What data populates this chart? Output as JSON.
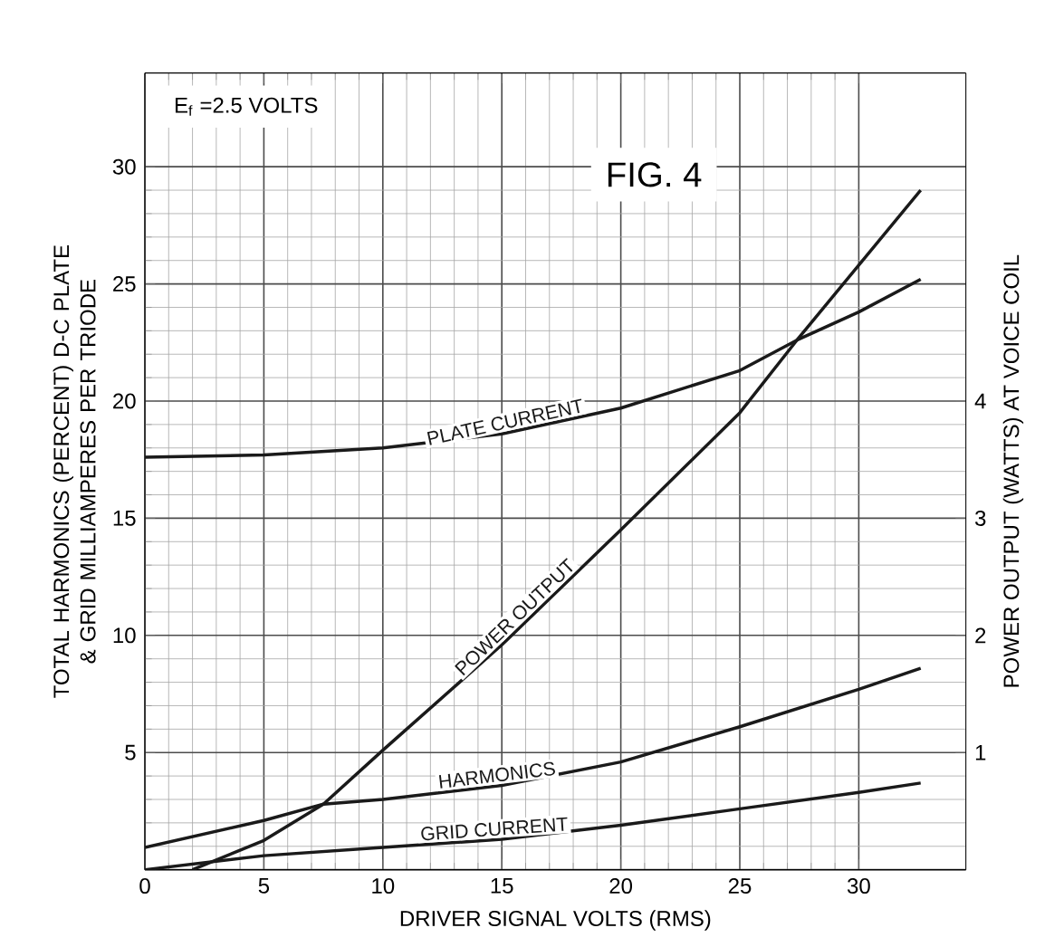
{
  "chart_data": {
    "type": "line",
    "title": "FIG. 4",
    "xlabel": "DRIVER SIGNAL VOLTS (RMS)",
    "ylabel": "TOTAL HARMONICS (PERCENT) D-C PLATE & GRID MILLIAMPERES PER TRIODE",
    "y2label": "POWER OUTPUT (WATTS) AT VOICE COIL",
    "annotations": [
      "E$_{f}$ =2.5 VOLTS"
    ],
    "xlim": [
      0,
      34.5
    ],
    "xticks": [
      0,
      5,
      10,
      15,
      20,
      25,
      30
    ],
    "ylim": [
      0,
      34
    ],
    "yticks": [
      {
        "value": 0,
        "label": null
      },
      5,
      10,
      15,
      20,
      25,
      30
    ],
    "y2lim": [
      0,
      6.8
    ],
    "y2ticks": [
      1,
      2,
      3,
      4
    ],
    "grid": true,
    "legend": false,
    "marker": "none",
    "line_style": "solid",
    "series": [
      {
        "name": "PLATE CURRENT",
        "color": "#1a1a1a",
        "x": [
          0,
          5,
          10,
          15,
          20,
          25,
          27.4,
          30,
          32.6
        ],
        "values": [
          17.6,
          17.7,
          18.0,
          18.6,
          19.7,
          21.3,
          22.6,
          23.8,
          25.2
        ]
      },
      {
        "name": "HARMONICS",
        "color": "#1a1a1a",
        "x": [
          0,
          5,
          7.5,
          10,
          15,
          20,
          25,
          30,
          32.6
        ],
        "values": [
          0.95,
          2.1,
          2.8,
          3.0,
          3.6,
          4.6,
          6.1,
          7.7,
          8.6
        ]
      },
      {
        "name": "GRID CURRENT",
        "color": "#1a1a1a",
        "x": [
          0,
          5,
          10,
          15,
          20,
          25,
          30,
          32.6
        ],
        "values": [
          0,
          0.6,
          0.95,
          1.3,
          1.9,
          2.6,
          3.3,
          3.7
        ]
      },
      {
        "name": "POWER OUTPUT",
        "color": "#1a1a1a",
        "axis": "y2",
        "x": [
          2,
          5,
          7.5,
          10,
          15,
          20,
          25,
          27.4,
          32.6
        ],
        "values": [
          0,
          0.25,
          0.56,
          1.02,
          1.92,
          2.9,
          3.9,
          4.52,
          5.8
        ]
      }
    ]
  }
}
